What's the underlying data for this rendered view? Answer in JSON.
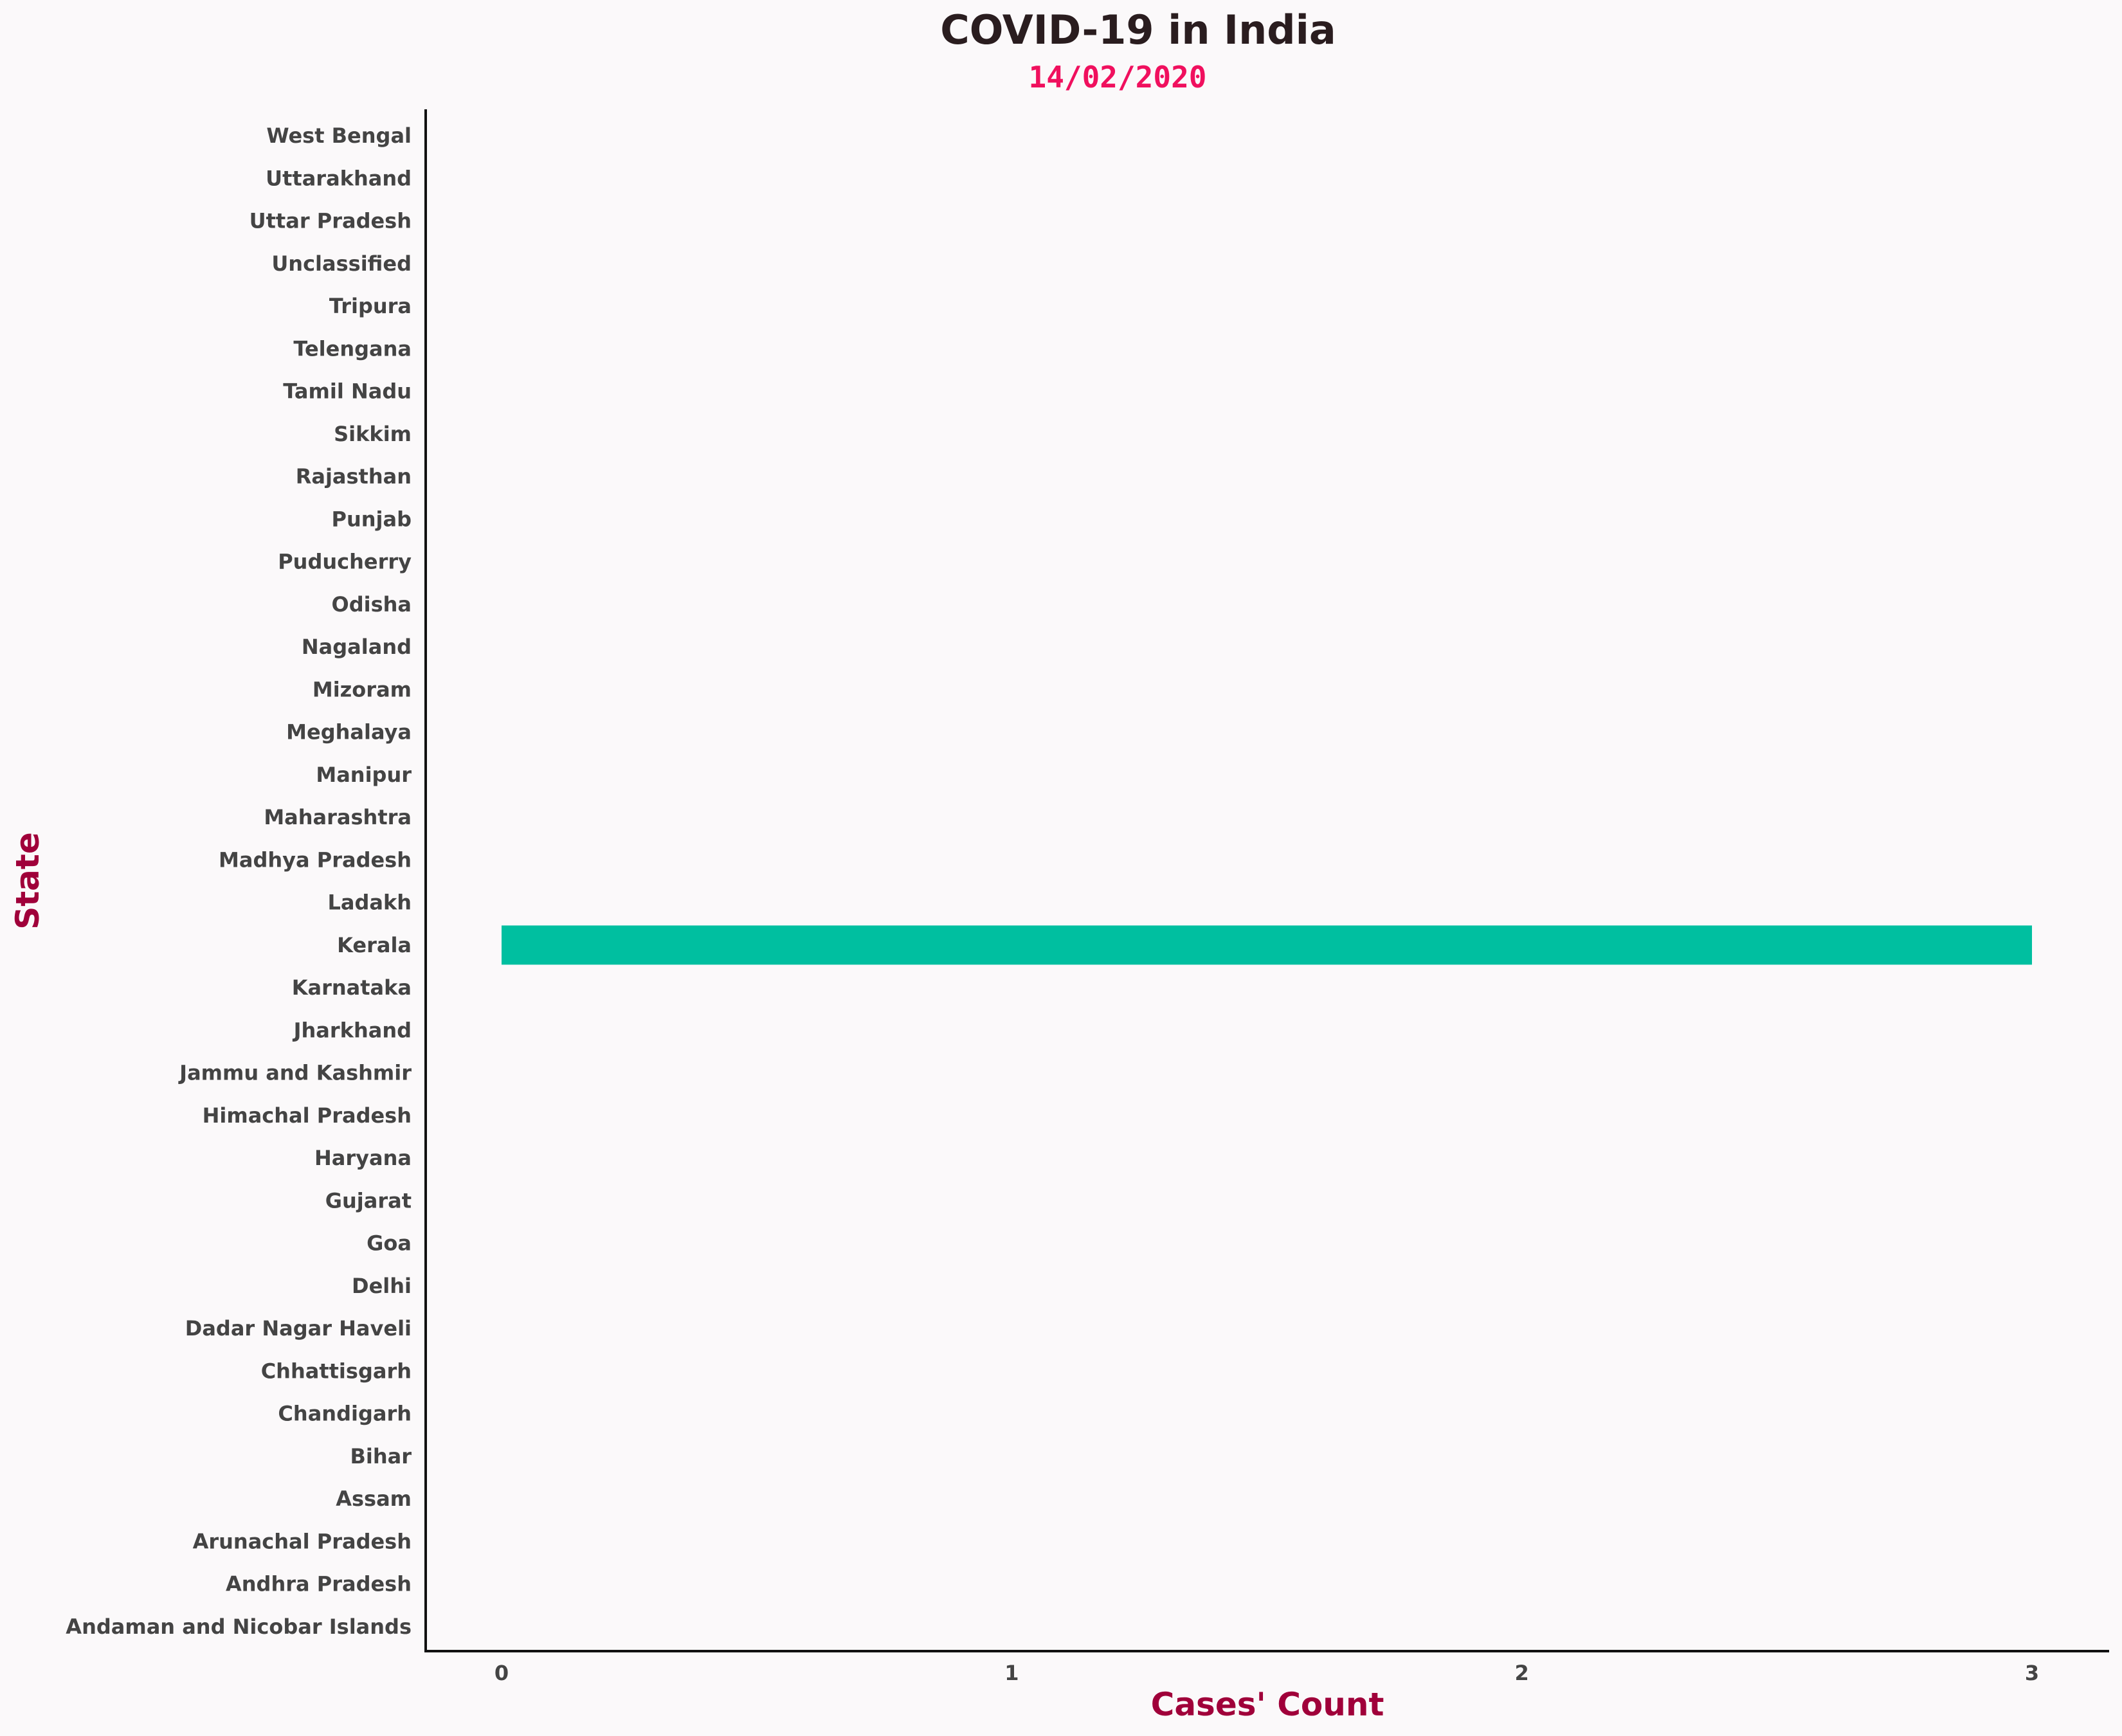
{
  "chart_data": {
    "type": "bar",
    "orientation": "horizontal",
    "title": "COVID-19 in India",
    "subtitle": "14/02/2020",
    "xlabel": "Cases' Count",
    "ylabel": "State",
    "xlim": [
      -0.15,
      3.15
    ],
    "xticks": [
      0,
      1,
      2,
      3
    ],
    "grid": false,
    "legend": "none",
    "bar_color": "#00bfa0",
    "categories": [
      "Andaman and Nicobar Islands",
      "Andhra Pradesh",
      "Arunachal Pradesh",
      "Assam",
      "Bihar",
      "Chandigarh",
      "Chhattisgarh",
      "Dadar Nagar Haveli",
      "Delhi",
      "Goa",
      "Gujarat",
      "Haryana",
      "Himachal Pradesh",
      "Jammu and Kashmir",
      "Jharkhand",
      "Karnataka",
      "Kerala",
      "Ladakh",
      "Madhya Pradesh",
      "Maharashtra",
      "Manipur",
      "Meghalaya",
      "Mizoram",
      "Nagaland",
      "Odisha",
      "Puducherry",
      "Punjab",
      "Rajasthan",
      "Sikkim",
      "Tamil Nadu",
      "Telengana",
      "Tripura",
      "Unclassified",
      "Uttar Pradesh",
      "Uttarakhand",
      "West Bengal"
    ],
    "values": [
      0,
      0,
      0,
      0,
      0,
      0,
      0,
      0,
      0,
      0,
      0,
      0,
      0,
      0,
      0,
      0,
      3,
      0,
      0,
      0,
      0,
      0,
      0,
      0,
      0,
      0,
      0,
      0,
      0,
      0,
      0,
      0,
      0,
      0,
      0,
      0
    ]
  }
}
